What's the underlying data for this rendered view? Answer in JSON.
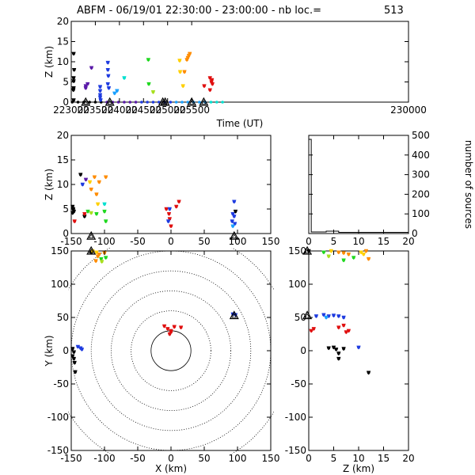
{
  "header": {
    "title": "ABFM - 06/19/01 22:30:00 - 23:00:00 - nb loc.=",
    "count": "513"
  },
  "colors": {
    "scale": [
      "#000000",
      "#5a1aa8",
      "#1f3ce0",
      "#1aa0ff",
      "#00e0d0",
      "#20d820",
      "#a8e020",
      "#ffd000",
      "#ff8c00",
      "#e01010"
    ]
  },
  "chart_data": [
    {
      "id": "time",
      "type": "scatter",
      "title": "",
      "xlabel": "Time (UT)",
      "ylabel": "Z (km)",
      "xlim": [
        223000,
        230000
      ],
      "ylim": [
        0,
        20
      ],
      "xticks": [
        {
          "v": 223000,
          "label": "223000"
        },
        {
          "v": 223500,
          "label": "223500"
        },
        {
          "v": 224000,
          "label": "224000"
        },
        {
          "v": 224500,
          "label": "224500"
        },
        {
          "v": 225000,
          "label": "225000"
        },
        {
          "v": 225500,
          "label": "225500"
        },
        {
          "v": 230000,
          "label": "230000"
        }
      ],
      "yticks": [
        0,
        5,
        10,
        15,
        20
      ],
      "baseline_marks": [
        223020,
        223140,
        223260,
        223380,
        223500,
        223620,
        223740,
        223860,
        223980,
        224100,
        224220,
        224340,
        224460,
        224580,
        224700,
        224820,
        224940,
        225060,
        225180,
        225300,
        225420,
        225540,
        225660,
        225780,
        225900,
        226020,
        226140
      ],
      "triangles": [
        223300,
        223800,
        224900,
        224950,
        225500,
        225750
      ],
      "points": [
        {
          "x": 223050,
          "y": 12,
          "c": 0
        },
        {
          "x": 223060,
          "y": 8,
          "c": 0
        },
        {
          "x": 223050,
          "y": 6,
          "c": 0
        },
        {
          "x": 223050,
          "y": 5.2,
          "c": 0
        },
        {
          "x": 223050,
          "y": 3.5,
          "c": 0
        },
        {
          "x": 223045,
          "y": 3,
          "c": 0
        },
        {
          "x": 223050,
          "y": 0.5,
          "c": 0
        },
        {
          "x": 223300,
          "y": 4,
          "c": 1
        },
        {
          "x": 223300,
          "y": 3.5,
          "c": 1
        },
        {
          "x": 223340,
          "y": 4.5,
          "c": 1
        },
        {
          "x": 223420,
          "y": 8.5,
          "c": 1
        },
        {
          "x": 223600,
          "y": 3.8,
          "c": 2
        },
        {
          "x": 223600,
          "y": 2.8,
          "c": 2
        },
        {
          "x": 223600,
          "y": 1.8,
          "c": 2
        },
        {
          "x": 223600,
          "y": 1.2,
          "c": 2
        },
        {
          "x": 223610,
          "y": 0.5,
          "c": 2
        },
        {
          "x": 223760,
          "y": 9.8,
          "c": 2
        },
        {
          "x": 223760,
          "y": 8,
          "c": 2
        },
        {
          "x": 223770,
          "y": 6.5,
          "c": 2
        },
        {
          "x": 223760,
          "y": 4.5,
          "c": 2
        },
        {
          "x": 223780,
          "y": 3.5,
          "c": 2
        },
        {
          "x": 223900,
          "y": 2.2,
          "c": 3
        },
        {
          "x": 223950,
          "y": 2.8,
          "c": 3
        },
        {
          "x": 224100,
          "y": 6,
          "c": 4
        },
        {
          "x": 224600,
          "y": 10.5,
          "c": 5
        },
        {
          "x": 224610,
          "y": 4.5,
          "c": 5
        },
        {
          "x": 224700,
          "y": 2.5,
          "c": 6
        },
        {
          "x": 225250,
          "y": 10.3,
          "c": 7
        },
        {
          "x": 225260,
          "y": 7.5,
          "c": 7
        },
        {
          "x": 225320,
          "y": 4,
          "c": 7
        },
        {
          "x": 225350,
          "y": 7.5,
          "c": 8
        },
        {
          "x": 225400,
          "y": 10.5,
          "c": 8
        },
        {
          "x": 225420,
          "y": 11,
          "c": 8
        },
        {
          "x": 225440,
          "y": 11.5,
          "c": 8
        },
        {
          "x": 225460,
          "y": 12,
          "c": 8
        },
        {
          "x": 225760,
          "y": 4,
          "c": 9
        },
        {
          "x": 225880,
          "y": 6,
          "c": 9
        },
        {
          "x": 225910,
          "y": 5,
          "c": 9
        },
        {
          "x": 225920,
          "y": 5.5,
          "c": 9
        },
        {
          "x": 225930,
          "y": 4.5,
          "c": 9
        },
        {
          "x": 225880,
          "y": 3,
          "c": 9
        }
      ]
    },
    {
      "id": "xz",
      "type": "scatter",
      "title": "",
      "xlabel": "",
      "ylabel": "Z (km)",
      "xlim": [
        -150,
        150
      ],
      "ylim": [
        0,
        20
      ],
      "xticks": [
        -150,
        -100,
        -50,
        0,
        50,
        100,
        150
      ],
      "yticks": [
        0,
        5,
        10,
        15,
        20
      ],
      "triangles": [
        {
          "x": -120,
          "y": -0.5
        },
        {
          "x": 95,
          "y": -0.5
        }
      ],
      "points": [
        {
          "x": -148,
          "y": 5.5,
          "c": 0
        },
        {
          "x": -147,
          "y": 5,
          "c": 0
        },
        {
          "x": -146,
          "y": 4.5,
          "c": 0
        },
        {
          "x": -148,
          "y": 4.2,
          "c": 0
        },
        {
          "x": -136,
          "y": 12,
          "c": 0
        },
        {
          "x": -130,
          "y": 3.5,
          "c": 0
        },
        {
          "x": -128,
          "y": 11,
          "c": 1
        },
        {
          "x": -133,
          "y": 10,
          "c": 2
        },
        {
          "x": -115,
          "y": 11.5,
          "c": 8
        },
        {
          "x": -122,
          "y": 10.5,
          "c": 7
        },
        {
          "x": -120,
          "y": 9,
          "c": 8
        },
        {
          "x": -112,
          "y": 8,
          "c": 8
        },
        {
          "x": -108,
          "y": 10.5,
          "c": 8
        },
        {
          "x": -98,
          "y": 11.5,
          "c": 8
        },
        {
          "x": -110,
          "y": 6,
          "c": 7
        },
        {
          "x": -100,
          "y": 6,
          "c": 4
        },
        {
          "x": -125,
          "y": 4.5,
          "c": 5
        },
        {
          "x": -120,
          "y": 4.2,
          "c": 6
        },
        {
          "x": -112,
          "y": 4,
          "c": 5
        },
        {
          "x": -100,
          "y": 4.5,
          "c": 5
        },
        {
          "x": -98,
          "y": 2.5,
          "c": 5
        },
        {
          "x": -145,
          "y": 2.5,
          "c": 9
        },
        {
          "x": -130,
          "y": 4,
          "c": 9
        },
        {
          "x": -7,
          "y": 5,
          "c": 9
        },
        {
          "x": 8,
          "y": 5.5,
          "c": 9
        },
        {
          "x": 12,
          "y": 6.5,
          "c": 9
        },
        {
          "x": -3,
          "y": 4,
          "c": 9
        },
        {
          "x": -2,
          "y": 3,
          "c": 9
        },
        {
          "x": 0,
          "y": 1.5,
          "c": 9
        },
        {
          "x": -4,
          "y": 2.5,
          "c": 2
        },
        {
          "x": -2,
          "y": 5,
          "c": 2
        },
        {
          "x": 95,
          "y": 6.5,
          "c": 2
        },
        {
          "x": 93,
          "y": 4,
          "c": 2
        },
        {
          "x": 95,
          "y": 3.5,
          "c": 2
        },
        {
          "x": 92,
          "y": 2.5,
          "c": 2
        },
        {
          "x": 96,
          "y": 2,
          "c": 2
        },
        {
          "x": 93,
          "y": 1.5,
          "c": 3
        },
        {
          "x": 97,
          "y": 4.5,
          "c": 0
        }
      ]
    },
    {
      "id": "hist",
      "type": "bar",
      "title": "",
      "xlabel": "",
      "ylabel": "number of sources",
      "xlim": [
        0,
        20
      ],
      "ylim": [
        0,
        500
      ],
      "xticks": [
        0,
        5,
        10,
        15,
        20
      ],
      "yticks": [
        0,
        100,
        200,
        300,
        400,
        500
      ],
      "bins": [
        {
          "x0": 0,
          "x1": 0.5,
          "v": 480
        },
        {
          "x0": 0.5,
          "x1": 3.5,
          "v": 8
        },
        {
          "x0": 3.5,
          "x1": 6,
          "v": 12
        },
        {
          "x0": 6,
          "x1": 20,
          "v": 6
        }
      ]
    },
    {
      "id": "xy",
      "type": "scatter",
      "title": "",
      "xlabel": "X (km)",
      "ylabel": "Y (km)",
      "xlim": [
        -150,
        150
      ],
      "ylim": [
        -150,
        150
      ],
      "xticks": [
        -150,
        -100,
        -50,
        0,
        50,
        100,
        150
      ],
      "yticks": [
        -150,
        -100,
        -50,
        0,
        50,
        100,
        150
      ],
      "range_rings": [
        30,
        60,
        90,
        120,
        150,
        180
      ],
      "triangles": [
        {
          "x": -120,
          "y": 150
        },
        {
          "x": 95,
          "y": 53
        }
      ],
      "points": [
        {
          "x": -120,
          "y": 148,
          "c": 0
        },
        {
          "x": -118,
          "y": 150,
          "c": 7
        },
        {
          "x": -112,
          "y": 148,
          "c": 7
        },
        {
          "x": -108,
          "y": 145,
          "c": 8
        },
        {
          "x": -100,
          "y": 147,
          "c": 8
        },
        {
          "x": -110,
          "y": 142,
          "c": 8
        },
        {
          "x": -105,
          "y": 138,
          "c": 5
        },
        {
          "x": -98,
          "y": 140,
          "c": 5
        },
        {
          "x": -113,
          "y": 135,
          "c": 8
        },
        {
          "x": -104,
          "y": 134,
          "c": 6
        },
        {
          "x": -148,
          "y": 3,
          "c": 0
        },
        {
          "x": -146,
          "y": -2,
          "c": 0
        },
        {
          "x": -148,
          "y": -8,
          "c": 0
        },
        {
          "x": -146,
          "y": -12,
          "c": 0
        },
        {
          "x": -145,
          "y": -18,
          "c": 0
        },
        {
          "x": -144,
          "y": -32,
          "c": 0
        },
        {
          "x": -140,
          "y": 6,
          "c": 2
        },
        {
          "x": -136,
          "y": 4,
          "c": 2
        },
        {
          "x": -134,
          "y": 2,
          "c": 2
        },
        {
          "x": -10,
          "y": 37,
          "c": 9
        },
        {
          "x": 5,
          "y": 36,
          "c": 9
        },
        {
          "x": 15,
          "y": 35,
          "c": 9
        },
        {
          "x": -5,
          "y": 33,
          "c": 9
        },
        {
          "x": 0,
          "y": 28,
          "c": 9
        },
        {
          "x": -2,
          "y": 25,
          "c": 9
        },
        {
          "x": 0,
          "y": 30,
          "c": 9
        },
        {
          "x": 97,
          "y": 54,
          "c": 2
        },
        {
          "x": 93,
          "y": 55,
          "c": 2
        }
      ]
    },
    {
      "id": "zy",
      "type": "scatter",
      "title": "",
      "xlabel": "Z (km)",
      "ylabel": "",
      "xlim": [
        0,
        20
      ],
      "ylim": [
        -150,
        150
      ],
      "xticks": [
        0,
        5,
        10,
        15,
        20
      ],
      "yticks": [
        -150,
        -100,
        -50,
        0,
        50,
        100,
        150
      ],
      "triangles": [
        {
          "x": -0.3,
          "y": 150
        },
        {
          "x": -0.3,
          "y": 53
        }
      ],
      "points": [
        {
          "x": 0,
          "y": 150,
          "c": 0
        },
        {
          "x": 3,
          "y": 148,
          "c": 5
        },
        {
          "x": 4.5,
          "y": 150,
          "c": 7
        },
        {
          "x": 6,
          "y": 148,
          "c": 8
        },
        {
          "x": 7,
          "y": 147,
          "c": 8
        },
        {
          "x": 8,
          "y": 145,
          "c": 8
        },
        {
          "x": 9,
          "y": 140,
          "c": 5
        },
        {
          "x": 10.5,
          "y": 148,
          "c": 7
        },
        {
          "x": 11,
          "y": 145,
          "c": 7
        },
        {
          "x": 11.5,
          "y": 150,
          "c": 8
        },
        {
          "x": 12,
          "y": 138,
          "c": 8
        },
        {
          "x": 4,
          "y": 142,
          "c": 6
        },
        {
          "x": 7,
          "y": 136,
          "c": 5
        },
        {
          "x": 1.5,
          "y": 52,
          "c": 2
        },
        {
          "x": 3,
          "y": 54,
          "c": 2
        },
        {
          "x": 4,
          "y": 52,
          "c": 2
        },
        {
          "x": 5,
          "y": 53,
          "c": 2
        },
        {
          "x": 6,
          "y": 52,
          "c": 2
        },
        {
          "x": 7,
          "y": 50,
          "c": 2
        },
        {
          "x": 3.5,
          "y": 50,
          "c": 3
        },
        {
          "x": 0.5,
          "y": 30,
          "c": 9
        },
        {
          "x": 1,
          "y": 33,
          "c": 9
        },
        {
          "x": 6,
          "y": 35,
          "c": 9
        },
        {
          "x": 7,
          "y": 38,
          "c": 9
        },
        {
          "x": 8,
          "y": 30,
          "c": 9
        },
        {
          "x": 7.5,
          "y": 28,
          "c": 9
        },
        {
          "x": 4,
          "y": 4,
          "c": 0
        },
        {
          "x": 5,
          "y": 5,
          "c": 0
        },
        {
          "x": 5.5,
          "y": 2,
          "c": 0
        },
        {
          "x": 6,
          "y": -4,
          "c": 0
        },
        {
          "x": 7,
          "y": 3,
          "c": 0
        },
        {
          "x": 6,
          "y": -12,
          "c": 0
        },
        {
          "x": 12,
          "y": -33,
          "c": 0
        },
        {
          "x": 10,
          "y": 5,
          "c": 2
        }
      ]
    }
  ]
}
